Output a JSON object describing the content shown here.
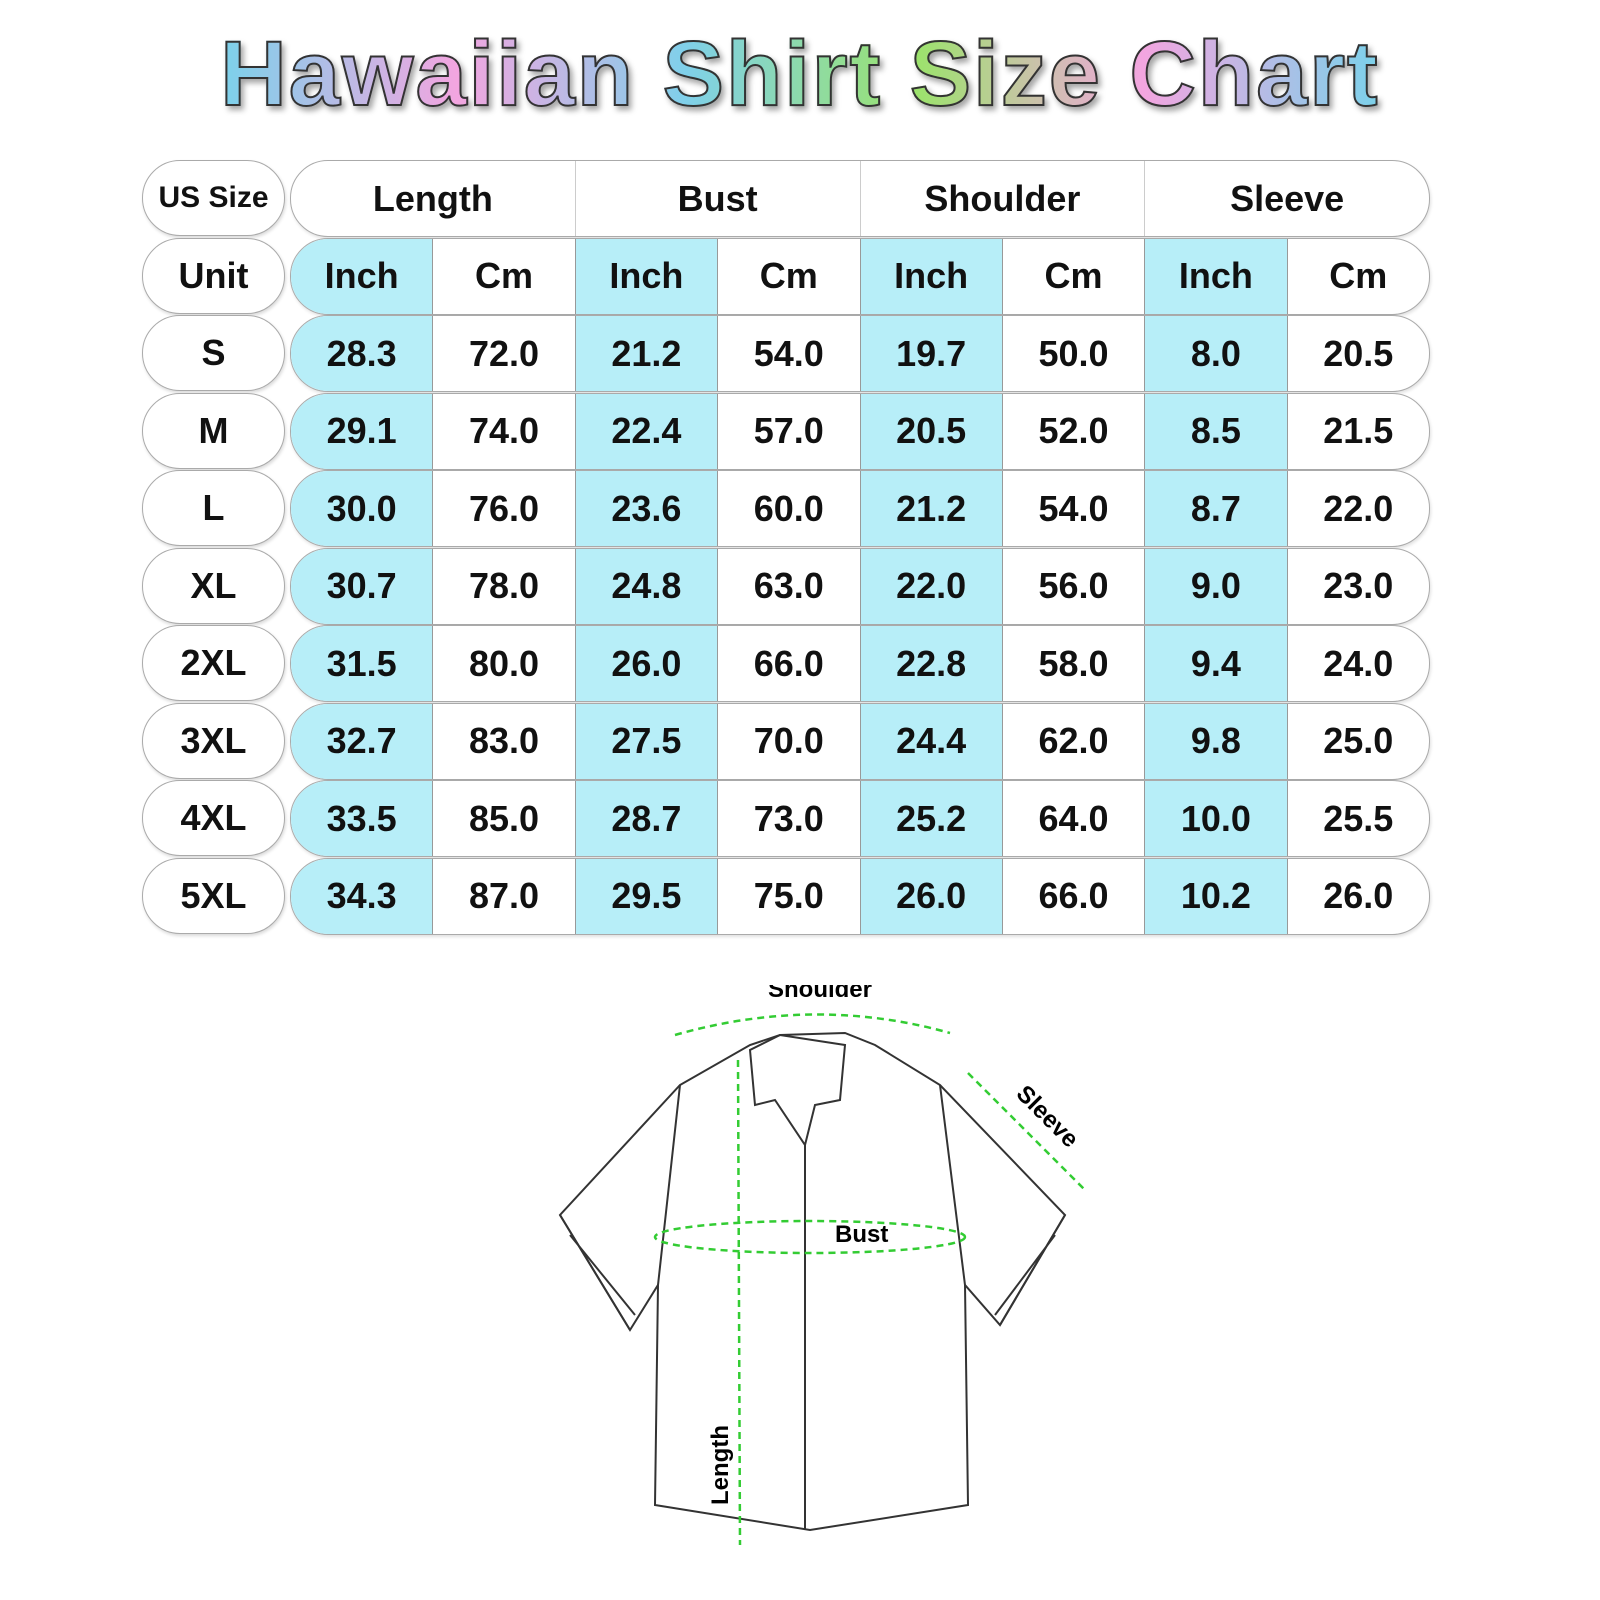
{
  "title": "Hawaiian Shirt Size Chart",
  "table": {
    "size_header": "US Size",
    "unit_header": "Unit",
    "groups": [
      "Length",
      "Bust",
      "Shoulder",
      "Sleeve"
    ],
    "units": [
      "Inch",
      "Cm",
      "Inch",
      "Cm",
      "Inch",
      "Cm",
      "Inch",
      "Cm"
    ],
    "rows": [
      {
        "size": "S",
        "values": [
          "28.3",
          "72.0",
          "21.2",
          "54.0",
          "19.7",
          "50.0",
          "8.0",
          "20.5"
        ]
      },
      {
        "size": "M",
        "values": [
          "29.1",
          "74.0",
          "22.4",
          "57.0",
          "20.5",
          "52.0",
          "8.5",
          "21.5"
        ]
      },
      {
        "size": "L",
        "values": [
          "30.0",
          "76.0",
          "23.6",
          "60.0",
          "21.2",
          "54.0",
          "8.7",
          "22.0"
        ]
      },
      {
        "size": "XL",
        "values": [
          "30.7",
          "78.0",
          "24.8",
          "63.0",
          "22.0",
          "56.0",
          "9.0",
          "23.0"
        ]
      },
      {
        "size": "2XL",
        "values": [
          "31.5",
          "80.0",
          "26.0",
          "66.0",
          "22.8",
          "58.0",
          "9.4",
          "24.0"
        ]
      },
      {
        "size": "3XL",
        "values": [
          "32.7",
          "83.0",
          "27.5",
          "70.0",
          "24.4",
          "62.0",
          "9.8",
          "25.0"
        ]
      },
      {
        "size": "4XL",
        "values": [
          "33.5",
          "85.0",
          "28.7",
          "73.0",
          "25.2",
          "64.0",
          "10.0",
          "25.5"
        ]
      },
      {
        "size": "5XL",
        "values": [
          "34.3",
          "87.0",
          "29.5",
          "75.0",
          "26.0",
          "66.0",
          "10.2",
          "26.0"
        ]
      }
    ]
  },
  "diagram": {
    "shoulder": "Shoulder",
    "sleeve": "Sleeve",
    "bust": "Bust",
    "length": "Length"
  },
  "colors": {
    "inch_fill": "#b7eef8",
    "measure_line": "#33cc33"
  }
}
